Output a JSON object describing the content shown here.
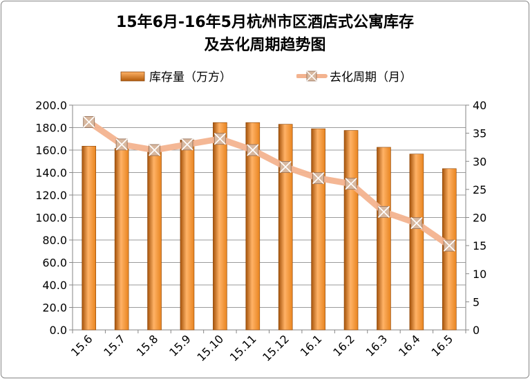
{
  "chart_data": {
    "type": "bar",
    "title_lines": [
      "15年6月-16年5月杭州市区酒店式公寓库存",
      "及去化周期趋势图"
    ],
    "categories": [
      "15.6",
      "15.7",
      "15.8",
      "15.9",
      "15.10",
      "15.11",
      "15.12",
      "16.1",
      "16.2",
      "16.3",
      "16.4",
      "16.5"
    ],
    "series": [
      {
        "name": "库存量（万方）",
        "type": "bar",
        "axis": "left",
        "values": [
          163.5,
          161.5,
          162.0,
          169.0,
          184.5,
          184.5,
          183.0,
          179.0,
          177.5,
          162.5,
          156.5,
          143.5
        ]
      },
      {
        "name": "去化周期（月）",
        "type": "line",
        "axis": "right",
        "values": [
          37,
          33,
          32,
          33,
          34,
          32,
          29,
          27,
          26,
          21,
          19,
          15
        ]
      }
    ],
    "y_left": {
      "min": 0,
      "max": 200,
      "step": 20,
      "ticks": [
        "0.0",
        "20.0",
        "40.0",
        "60.0",
        "80.0",
        "100.0",
        "120.0",
        "140.0",
        "160.0",
        "180.0",
        "200.0"
      ]
    },
    "y_right": {
      "min": 0,
      "max": 40,
      "step": 5,
      "ticks": [
        "0",
        "5",
        "10",
        "15",
        "20",
        "25",
        "30",
        "35",
        "40"
      ]
    },
    "grid": true,
    "legend_position": "top",
    "colors": {
      "bar": "#e8841f",
      "bar_light": "#ffb266",
      "bar_dark": "#a4520a",
      "line": "#f3b38f",
      "marker": "#c9a88e"
    }
  }
}
